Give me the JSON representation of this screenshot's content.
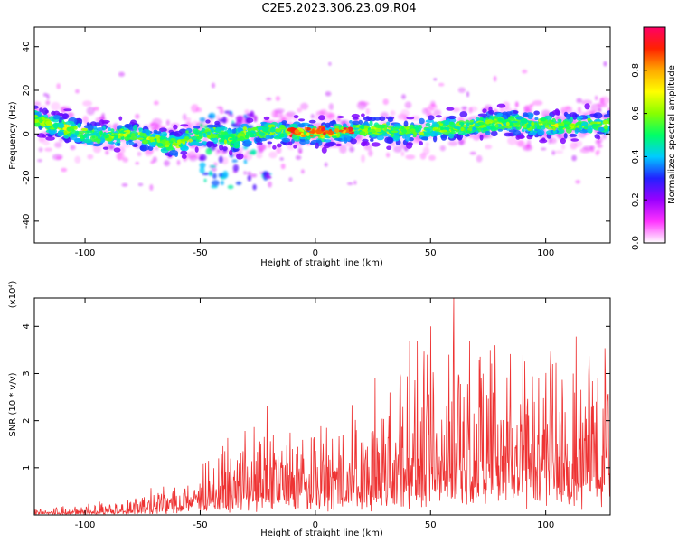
{
  "figure": {
    "title": "C2E5.2023.306.23.09.R04"
  },
  "chart_data": [
    {
      "type": "heatmap",
      "title": "C2E5.2023.306.23.09.R04",
      "xlabel": "Height of straight line (km)",
      "ylabel": "Frequency (Hz)",
      "xlim": [
        -122,
        128
      ],
      "ylim": [
        -50,
        49
      ],
      "xticks": [
        -100,
        -50,
        0,
        50,
        100
      ],
      "yticks": [
        -40,
        -20,
        0,
        20,
        40
      ],
      "grid": false,
      "colorbar": {
        "label": "Normalized spectral amplitude",
        "range": [
          0.0,
          1.0
        ],
        "ticks": [
          "0.0",
          "0.2",
          "0.4",
          "0.6",
          "0.8"
        ],
        "tick_values": [
          0.0,
          0.2,
          0.4,
          0.6,
          0.8
        ],
        "colormap": [
          "#ffffff",
          "#ff33ff",
          "#9900ff",
          "#2222ff",
          "#00ccff",
          "#00ff66",
          "#88ff00",
          "#ffff00",
          "#ffaa00",
          "#ff2200",
          "#ff0066"
        ]
      },
      "ridge": [
        [
          -122,
          7
        ],
        [
          -115,
          4
        ],
        [
          -110,
          3
        ],
        [
          -100,
          0
        ],
        [
          -90,
          -1
        ],
        [
          -80,
          0
        ],
        [
          -70,
          -3
        ],
        [
          -60,
          -5
        ],
        [
          -55,
          -2
        ],
        [
          -50,
          -1
        ],
        [
          -45,
          1
        ],
        [
          -40,
          -1
        ],
        [
          -35,
          -3
        ],
        [
          -30,
          0
        ],
        [
          -25,
          1
        ],
        [
          -20,
          1
        ],
        [
          -10,
          1
        ],
        [
          0,
          0
        ],
        [
          10,
          1
        ],
        [
          20,
          2
        ],
        [
          30,
          2
        ],
        [
          40,
          1
        ],
        [
          50,
          2
        ],
        [
          60,
          3
        ],
        [
          70,
          4
        ],
        [
          80,
          5
        ],
        [
          90,
          5
        ],
        [
          100,
          4
        ],
        [
          110,
          4
        ],
        [
          120,
          4
        ],
        [
          128,
          5
        ]
      ],
      "features": [
        {
          "x": [
            -50,
            -25
          ],
          "y": [
            -25,
            10
          ],
          "note": "scatter"
        },
        {
          "x": [
            -22,
            -20
          ],
          "y": [
            -20,
            -18
          ],
          "note": "spot"
        },
        {
          "x": [
            -10,
            15
          ],
          "y": [
            -1,
            2
          ],
          "note": "strong"
        }
      ]
    },
    {
      "type": "line",
      "xlabel": "Height of straight line (km)",
      "ylabel": "SNR (10 * v/v)",
      "yscale_note": "(x10⁴)",
      "xlim": [
        -122,
        128
      ],
      "ylim": [
        0,
        4.6
      ],
      "xticks": [
        -100,
        -50,
        0,
        50,
        100
      ],
      "yticks": [
        1,
        2,
        3,
        4
      ],
      "grid": false,
      "color": "#ee3333",
      "envelope": [
        [
          -122,
          0.12
        ],
        [
          -110,
          0.15
        ],
        [
          -100,
          0.2
        ],
        [
          -90,
          0.22
        ],
        [
          -80,
          0.28
        ],
        [
          -70,
          0.45
        ],
        [
          -60,
          0.55
        ],
        [
          -50,
          0.9
        ],
        [
          -40,
          1.05
        ],
        [
          -30,
          1.3
        ],
        [
          -20,
          1.4
        ],
        [
          -10,
          1.5
        ],
        [
          0,
          1.4
        ],
        [
          10,
          1.6
        ],
        [
          20,
          1.7
        ],
        [
          30,
          1.9
        ],
        [
          40,
          2.4
        ],
        [
          50,
          2.6
        ],
        [
          60,
          2.9
        ],
        [
          70,
          2.8
        ],
        [
          80,
          2.9
        ],
        [
          90,
          2.7
        ],
        [
          100,
          2.8
        ],
        [
          110,
          2.6
        ],
        [
          120,
          2.5
        ],
        [
          128,
          2.4
        ]
      ],
      "peaks": [
        [
          -66,
          0.6
        ],
        [
          -42,
          1.2
        ],
        [
          -21,
          2.3
        ],
        [
          -10,
          1.4
        ],
        [
          12,
          1.7
        ],
        [
          26,
          2.9
        ],
        [
          41,
          3.7
        ],
        [
          47,
          2.9
        ],
        [
          50,
          4.0
        ],
        [
          58,
          3.4
        ],
        [
          60,
          4.6
        ],
        [
          67,
          3.7
        ],
        [
          72,
          2.9
        ],
        [
          78,
          3.6
        ],
        [
          90,
          3.4
        ],
        [
          97,
          2.9
        ],
        [
          103,
          3.2
        ],
        [
          112,
          3.0
        ],
        [
          122,
          2.4
        ],
        [
          126,
          2.9
        ]
      ]
    }
  ]
}
